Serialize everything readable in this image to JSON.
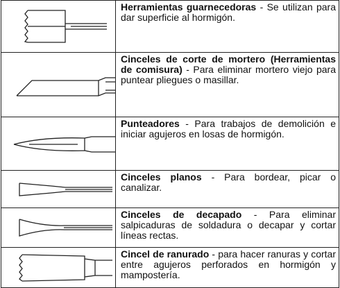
{
  "rows": [
    {
      "term": "Herramientas guarnecedoras",
      "desc": " - Se utilizan para dar superficie al hormigón."
    },
    {
      "term": "Cinceles de corte de mortero (Herramientas de comisura)",
      "desc": " - Para eliminar mortero viejo para puntear pliegues o masillar."
    },
    {
      "term": "Punteadores",
      "desc": " - Para trabajos de demolición e iniciar agujeros en losas de hormigón."
    },
    {
      "term": "Cinceles planos",
      "desc": " - Para bordear, picar o canalizar."
    },
    {
      "term": "Cinceles de decapado",
      "desc": " - Para eliminar salpicaduras de soldadura o decapar y cortar líneas rectas."
    },
    {
      "term": "Cincel de ranurado",
      "desc": " - para hacer ranuras y cortar entre agujeros perforados en hormigón y mampostería."
    }
  ]
}
